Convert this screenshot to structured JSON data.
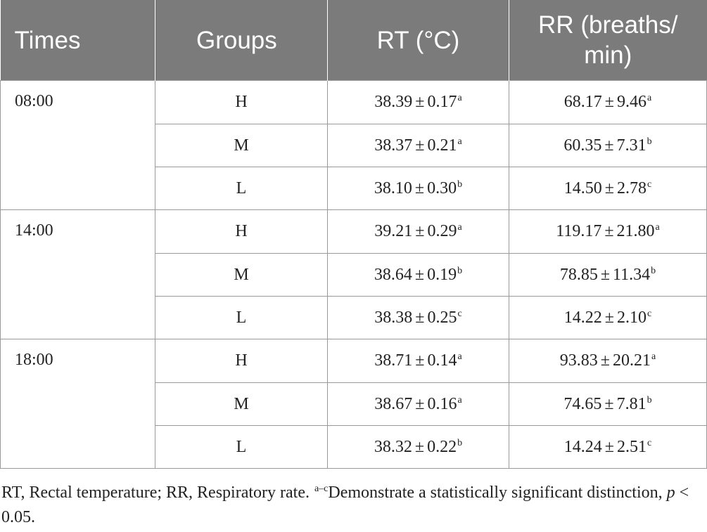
{
  "table": {
    "headers": [
      "Times",
      "Groups",
      "RT (°C)",
      "RR (breaths/ min)"
    ],
    "groups": [
      {
        "time": "08:00",
        "rows": [
          {
            "group": "H",
            "rt": "38.39",
            "rt_sd": "0.17",
            "rt_sup": "a",
            "rr": "68.17",
            "rr_sd": "9.46",
            "rr_sup": "a"
          },
          {
            "group": "M",
            "rt": "38.37",
            "rt_sd": "0.21",
            "rt_sup": "a",
            "rr": "60.35",
            "rr_sd": "7.31",
            "rr_sup": "b"
          },
          {
            "group": "L",
            "rt": "38.10",
            "rt_sd": "0.30",
            "rt_sup": "b",
            "rr": "14.50",
            "rr_sd": "2.78",
            "rr_sup": "c"
          }
        ]
      },
      {
        "time": "14:00",
        "rows": [
          {
            "group": "H",
            "rt": "39.21",
            "rt_sd": "0.29",
            "rt_sup": "a",
            "rr": "119.17",
            "rr_sd": "21.80",
            "rr_sup": "a"
          },
          {
            "group": "M",
            "rt": "38.64",
            "rt_sd": "0.19",
            "rt_sup": "b",
            "rr": "78.85",
            "rr_sd": "11.34",
            "rr_sup": "b"
          },
          {
            "group": "L",
            "rt": "38.38",
            "rt_sd": "0.25",
            "rt_sup": "c",
            "rr": "14.22",
            "rr_sd": "2.10",
            "rr_sup": "c"
          }
        ]
      },
      {
        "time": "18:00",
        "rows": [
          {
            "group": "H",
            "rt": "38.71",
            "rt_sd": "0.14",
            "rt_sup": "a",
            "rr": "93.83",
            "rr_sd": "20.21",
            "rr_sup": "a"
          },
          {
            "group": "M",
            "rt": "38.67",
            "rt_sd": "0.16",
            "rt_sup": "a",
            "rr": "74.65",
            "rr_sd": "7.81",
            "rr_sup": "b"
          },
          {
            "group": "L",
            "rt": "38.32",
            "rt_sd": "0.22",
            "rt_sup": "b",
            "rr": "14.24",
            "rr_sd": "2.51",
            "rr_sup": "c"
          }
        ]
      }
    ],
    "pm_symbol": "±"
  },
  "footnote": {
    "abbrev": "RT, Rectal temperature; RR, Respiratory rate.",
    "sup": "a–c",
    "text": "Demonstrate a statistically significant distinction,",
    "p_label": "p",
    "p_value": " < 0.05."
  },
  "colors": {
    "header_bg": "#7b7b7b",
    "header_text": "#ffffff",
    "border": "#9a9a9a"
  }
}
